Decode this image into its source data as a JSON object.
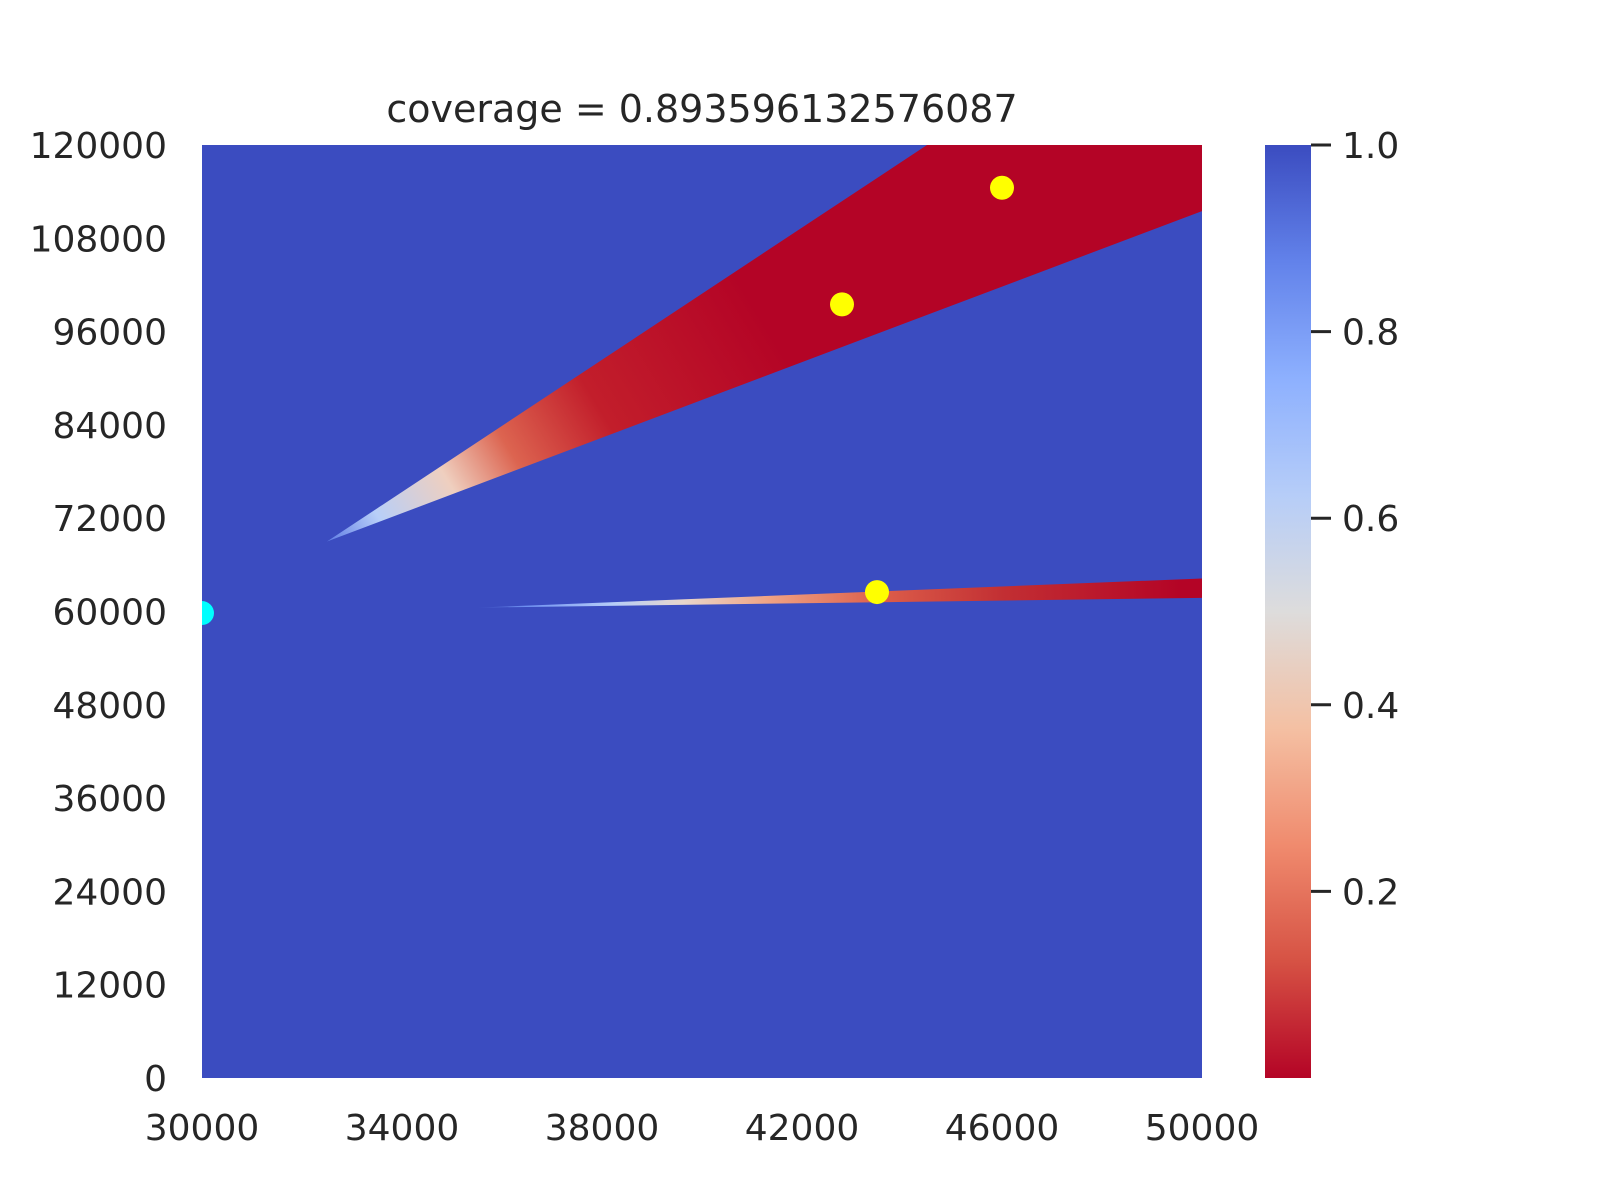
{
  "chart_data": {
    "type": "heatmap",
    "title": "coverage = 0.893596132576087",
    "xlabel": "",
    "ylabel": "",
    "xlim": [
      30000,
      50000
    ],
    "ylim": [
      0,
      120000
    ],
    "x_ticks": [
      "30000",
      "34000",
      "38000",
      "42000",
      "46000",
      "50000"
    ],
    "y_ticks": [
      "0",
      "12000",
      "24000",
      "36000",
      "48000",
      "60000",
      "72000",
      "84000",
      "96000",
      "108000",
      "120000"
    ],
    "colormap": "coolwarm_r",
    "colors": {
      "high": "#3b4cc0",
      "mid": "#dddcdc",
      "low": "#b40426"
    },
    "background_value": 1.0,
    "grid": false,
    "regions": [
      {
        "name": "upper-wedge",
        "apex": [
          32500,
          69000
        ],
        "upper_edge_end": [
          44500,
          120000
        ],
        "lower_edge_end": [
          50000,
          111500
        ],
        "value_far": 0.0,
        "value_near_apex": 1.0
      },
      {
        "name": "lower-band",
        "start": [
          35500,
          60500
        ],
        "end": [
          50000,
          63000
        ],
        "width_end": 2500,
        "value_far": 0.0,
        "value_near_start": 1.0
      }
    ],
    "points": [
      {
        "series": "yellow",
        "x": 46000,
        "y": 114500,
        "color": "#ffff00"
      },
      {
        "series": "yellow",
        "x": 42800,
        "y": 99500,
        "color": "#ffff00"
      },
      {
        "series": "yellow",
        "x": 43500,
        "y": 62500,
        "color": "#ffff00"
      },
      {
        "series": "cyan",
        "x": 30000,
        "y": 59800,
        "color": "#00ffff"
      }
    ],
    "colorbar": {
      "range": [
        0.0,
        1.0
      ],
      "ticks": [
        "0.2",
        "0.4",
        "0.6",
        "0.8",
        "1.0"
      ],
      "tick_values": [
        0.2,
        0.4,
        0.6,
        0.8,
        1.0
      ]
    }
  }
}
